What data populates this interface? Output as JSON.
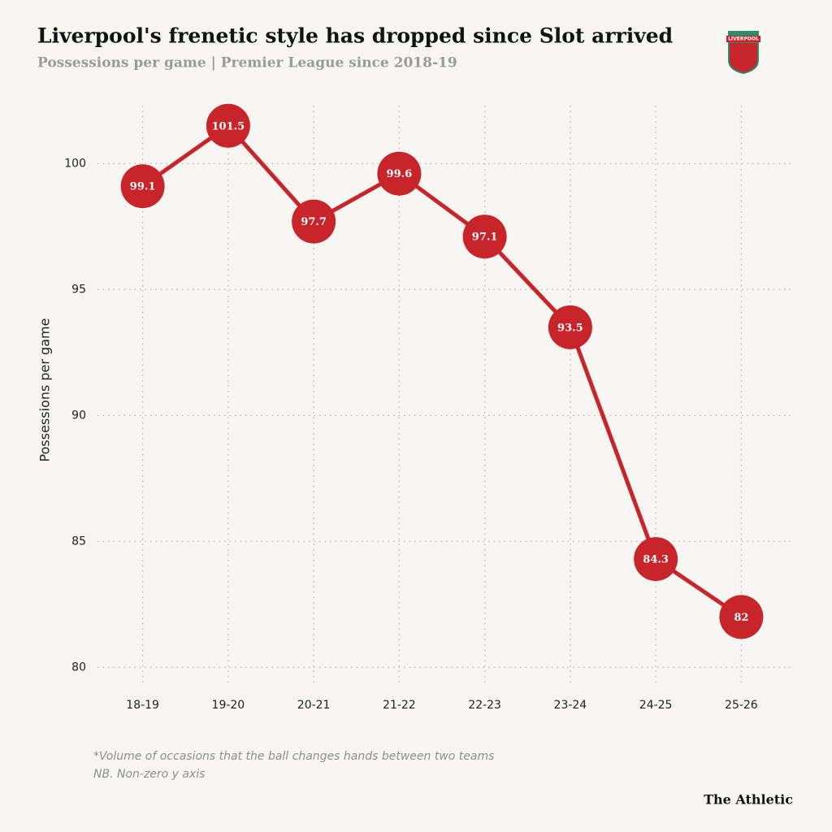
{
  "chart_data": {
    "type": "line",
    "title": "Liverpool's frenetic style has dropped since Slot arrived",
    "subtitle": "Possessions per game | Premier League since 2018-19",
    "y_label": "Possessions per game",
    "categories": [
      "18-19",
      "19-20",
      "20-21",
      "21-22",
      "22-23",
      "23-24",
      "24-25",
      "25-26"
    ],
    "values": [
      99.1,
      101.5,
      97.7,
      99.6,
      97.1,
      93.5,
      84.3,
      82
    ],
    "color": "#c8252b",
    "ylim": [
      79.4,
      102.3
    ],
    "yticks": [
      80,
      85,
      90,
      95,
      100
    ],
    "grid": true,
    "notes": [
      "*Volume of occasions that the ball changes hands between two teams",
      "NB. Non-zero y axis"
    ],
    "source": "The Athletic",
    "logo": "LIVERPOOL"
  }
}
